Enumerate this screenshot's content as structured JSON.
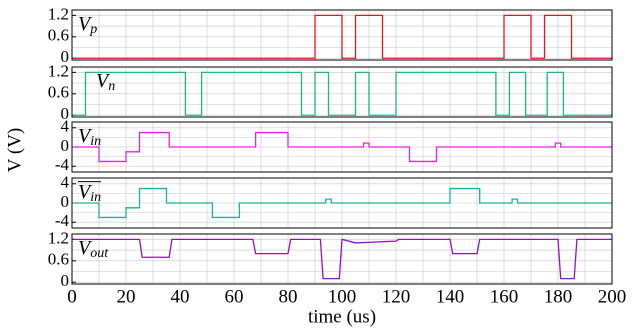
{
  "chart_data": [
    {
      "type": "line",
      "label": {
        "main": "V",
        "sub": "p"
      },
      "color": "#e8141c",
      "x": [
        0,
        90,
        90,
        100,
        100,
        105,
        105,
        115,
        115,
        160,
        160,
        170,
        170,
        175,
        175,
        185,
        185,
        200
      ],
      "values": [
        0,
        0,
        1.2,
        1.2,
        0,
        0,
        1.2,
        1.2,
        0,
        0,
        1.2,
        1.2,
        0,
        0,
        1.2,
        1.2,
        0,
        0
      ],
      "xlim": [
        0,
        200
      ],
      "xticks": [
        0,
        20,
        40,
        60,
        80,
        100,
        120,
        140,
        160,
        180,
        200
      ],
      "xminorticks": [
        10,
        30,
        50,
        70,
        90,
        110,
        130,
        150,
        170,
        190
      ],
      "ylim": [
        -0.05,
        1.35
      ],
      "yticks": [
        0,
        0.6,
        1.2
      ],
      "yminorticks": [
        0.3,
        0.9
      ],
      "grid": true
    },
    {
      "type": "line",
      "label": {
        "main": "V",
        "sub": "n"
      },
      "color": "#1db486",
      "x": [
        0,
        5,
        5,
        42,
        42,
        48,
        48,
        85,
        85,
        90,
        90,
        95,
        95,
        105,
        105,
        110,
        110,
        120,
        120,
        157,
        157,
        162,
        162,
        168,
        168,
        176,
        176,
        182,
        182,
        200
      ],
      "values": [
        0,
        0,
        1.2,
        1.2,
        0,
        0,
        1.2,
        1.2,
        0,
        0,
        1.2,
        1.2,
        0,
        0,
        1.2,
        1.2,
        0,
        0,
        1.2,
        1.2,
        0,
        0,
        1.2,
        1.2,
        0,
        0,
        1.2,
        1.2,
        0,
        0
      ],
      "xlim": [
        0,
        200
      ],
      "xticks": [
        0,
        20,
        40,
        60,
        80,
        100,
        120,
        140,
        160,
        180,
        200
      ],
      "xminorticks": [
        10,
        30,
        50,
        70,
        90,
        110,
        130,
        150,
        170,
        190
      ],
      "ylim": [
        -0.05,
        1.35
      ],
      "yticks": [
        0,
        0.6,
        1.2
      ],
      "yminorticks": [
        0.3,
        0.9
      ],
      "grid": true
    },
    {
      "type": "line",
      "label": {
        "main": "V",
        "sub": "in"
      },
      "color": "#e820e0",
      "ylabel": "V (V)",
      "x": [
        0,
        10,
        10,
        20,
        20,
        25,
        25,
        36,
        36,
        68,
        68,
        80,
        80,
        108,
        108,
        110,
        110,
        125,
        125,
        135,
        135,
        179,
        179,
        181,
        181,
        200
      ],
      "values": [
        0,
        0,
        -3,
        -3,
        -1,
        -1,
        3,
        3,
        0,
        0,
        3,
        3,
        0,
        0,
        0.8,
        0.8,
        0,
        0,
        -3,
        -3,
        0,
        0,
        0.8,
        0.8,
        0,
        0
      ],
      "xlim": [
        0,
        200
      ],
      "xticks": [
        0,
        20,
        40,
        60,
        80,
        100,
        120,
        140,
        160,
        180,
        200
      ],
      "xminorticks": [
        10,
        30,
        50,
        70,
        90,
        110,
        130,
        150,
        170,
        190
      ],
      "ylim": [
        -5.2,
        5.2
      ],
      "yticks": [
        -4,
        0,
        4
      ],
      "yminorticks": [
        -2,
        2
      ],
      "grid": true
    },
    {
      "type": "line",
      "label": {
        "main": "V",
        "sub": "in",
        "overline": true
      },
      "color": "#1ab0a0",
      "x": [
        0,
        10,
        10,
        20,
        20,
        25,
        25,
        35,
        35,
        52,
        52,
        62,
        62,
        94,
        94,
        96,
        96,
        140,
        140,
        151,
        151,
        163,
        163,
        165,
        165,
        200
      ],
      "values": [
        0,
        0,
        -3,
        -3,
        -1,
        -1,
        3,
        3,
        0,
        0,
        -3,
        -3,
        0,
        0,
        0.8,
        0.8,
        0,
        0,
        3,
        3,
        0,
        0,
        0.8,
        0.8,
        0,
        0
      ],
      "xlim": [
        0,
        200
      ],
      "xticks": [
        0,
        20,
        40,
        60,
        80,
        100,
        120,
        140,
        160,
        180,
        200
      ],
      "xminorticks": [
        10,
        30,
        50,
        70,
        90,
        110,
        130,
        150,
        170,
        190
      ],
      "ylim": [
        -5.2,
        5.2
      ],
      "yticks": [
        -4,
        0,
        4
      ],
      "yminorticks": [
        -2,
        2
      ],
      "grid": true
    },
    {
      "type": "line",
      "label": {
        "main": "V",
        "sub": "out"
      },
      "color": "#9010d0",
      "xlabel": "time (us)",
      "show_xtick_labels": true,
      "x": [
        0,
        25,
        26,
        36,
        37,
        67,
        68,
        80,
        81,
        92,
        93,
        99,
        100,
        105,
        120,
        121,
        140,
        141,
        150,
        151,
        180,
        181,
        186,
        187,
        200
      ],
      "values": [
        1.2,
        1.2,
        0.7,
        0.7,
        1.2,
        1.2,
        0.8,
        0.8,
        1.2,
        1.2,
        0.1,
        0.1,
        1.2,
        1.1,
        1.15,
        1.2,
        1.2,
        0.8,
        0.8,
        1.2,
        1.2,
        0.1,
        0.1,
        1.2,
        1.2
      ],
      "xlim": [
        0,
        200
      ],
      "xticks": [
        0,
        20,
        40,
        60,
        80,
        100,
        120,
        140,
        160,
        180,
        200
      ],
      "xminorticks": [
        10,
        30,
        50,
        70,
        90,
        110,
        130,
        150,
        170,
        190
      ],
      "ylim": [
        -0.05,
        1.35
      ],
      "yticks": [
        0,
        0.6,
        1.2
      ],
      "yminorticks": [
        0.3,
        0.9
      ],
      "grid": true
    }
  ]
}
